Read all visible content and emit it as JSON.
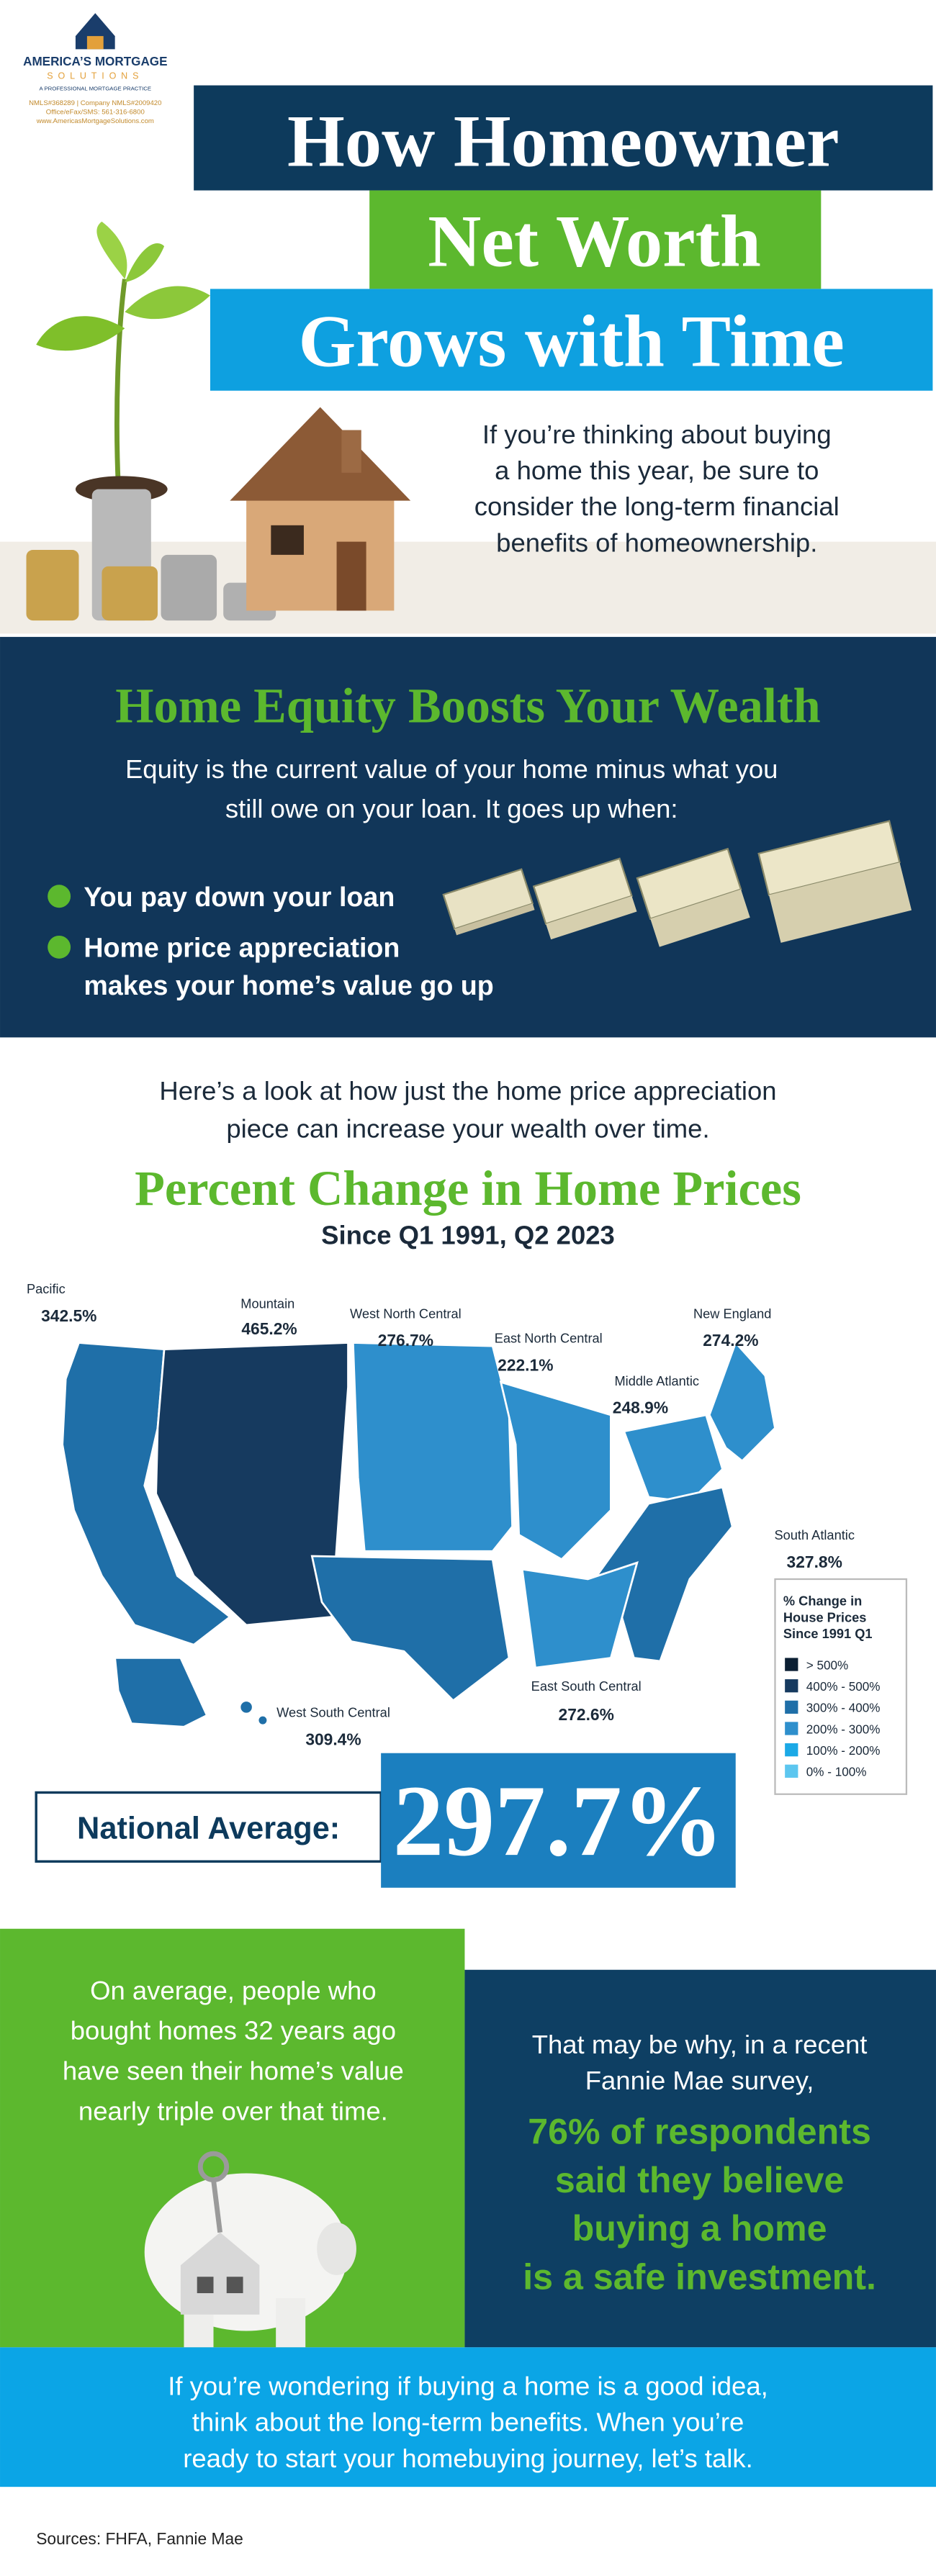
{
  "logo": {
    "name": "AMERICA’S MORTGAGE",
    "sub": "SOLUTIONS",
    "tagline": "A PROFESSIONAL MORTGAGE PRACTICE",
    "contact": [
      "NMLS#368289 | Company NMLS#2009420",
      "Office/eFax/SMS: 561-316-6800",
      "www.AmericasMortgageSolutions.com"
    ]
  },
  "title": [
    "How Homeowner",
    "Net Worth",
    "Grows with Time"
  ],
  "intro": [
    "If you’re thinking about buying",
    "a home this year, be sure to",
    "consider the long-term financial",
    "benefits of homeownership."
  ],
  "equity": {
    "heading": "Home Equity Boosts Your Wealth",
    "text": [
      "Equity is the current value of your home minus what you",
      "still owe on your loan. It goes up when:"
    ],
    "bullets": [
      [
        "You pay down your loan"
      ],
      [
        "Home price appreciation",
        "makes your home’s value go up"
      ]
    ]
  },
  "lead": [
    "Here’s a look at how just the home price appreciation",
    "piece can increase your wealth over time."
  ],
  "map": {
    "title": "Percent Change in Home Prices",
    "subtitle": "Since Q1 1991, Q2 2023",
    "regions": [
      {
        "name": "Pacific",
        "value": "342.5%"
      },
      {
        "name": "Mountain",
        "value": "465.2%"
      },
      {
        "name": "West North Central",
        "value": "276.7%"
      },
      {
        "name": "East North Central",
        "value": "222.1%"
      },
      {
        "name": "Middle Atlantic",
        "value": "248.9%"
      },
      {
        "name": "New England",
        "value": "274.2%"
      },
      {
        "name": "South Atlantic",
        "value": "327.8%"
      },
      {
        "name": "West South Central",
        "value": "309.4%"
      },
      {
        "name": "East South Central",
        "value": "272.6%"
      }
    ],
    "legend": {
      "title": [
        "% Change in",
        "House Prices",
        "Since 1991 Q1"
      ],
      "items": [
        "> 500%",
        "400% - 500%",
        "300% - 400%",
        "200% - 300%",
        "100% - 200%",
        "0% - 100%"
      ]
    }
  },
  "national": {
    "label": "National Average:",
    "value": "297.7%"
  },
  "piggy": [
    "On average, people who",
    "bought homes 32 years ago",
    "have seen their home’s value",
    "nearly triple over that time."
  ],
  "survey": {
    "intro": [
      "That may be why, in a recent",
      "Fannie Mae survey,"
    ],
    "highlight": [
      "76% of respondents",
      "said they believe",
      "buying a home",
      "is a safe investment."
    ]
  },
  "closing": [
    "If you’re wondering if buying a home is a good idea,",
    "think about the long-term benefits. When you’re",
    "ready to start your homebuying journey, let’s talk."
  ],
  "sources": "Sources: FHFA, Fannie Mae"
}
